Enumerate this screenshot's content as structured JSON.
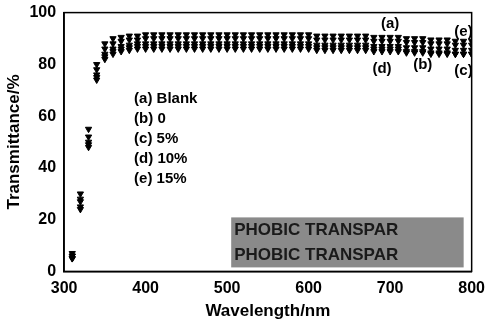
{
  "chart_data": {
    "type": "scatter",
    "x_label": "Wavelength/nm",
    "y_label": "Transmittance/%",
    "xlim": [
      300,
      800
    ],
    "xticks": [
      300,
      400,
      500,
      600,
      700,
      800
    ],
    "ylim": [
      0,
      100
    ],
    "yticks": [
      0,
      20,
      40,
      60,
      80,
      100
    ],
    "grid": false,
    "legend": "upper left",
    "marker": "triangle-down",
    "annotations": [
      "PHOBIC TRANSPAR",
      "PHOBIC TRANSPAR"
    ],
    "x": [
      310,
      320,
      330,
      340,
      350,
      360,
      370,
      380,
      390,
      400,
      410,
      420,
      430,
      440,
      450,
      460,
      470,
      480,
      490,
      500,
      510,
      520,
      530,
      540,
      550,
      560,
      570,
      580,
      590,
      600,
      610,
      620,
      630,
      640,
      650,
      660,
      670,
      680,
      690,
      700,
      710,
      720,
      730,
      740,
      750,
      760,
      770,
      780,
      790,
      800
    ],
    "series": [
      {
        "name": "(a) Blank",
        "color": "#000000",
        "values": [
          6,
          30,
          55,
          80,
          88,
          90,
          90.5,
          91,
          91,
          91.5,
          91.5,
          91.5,
          91.5,
          91.5,
          91.5,
          91.5,
          91.5,
          91.5,
          91.5,
          91.5,
          91.5,
          91.5,
          91.5,
          91.5,
          91.5,
          91.5,
          91.5,
          91.5,
          91.5,
          91.5,
          91,
          91,
          91,
          91,
          91,
          91,
          91,
          90.5,
          90.5,
          90.5,
          90.5,
          90,
          90,
          90,
          89.5,
          89.5,
          89.5,
          89,
          89,
          89
        ]
      },
      {
        "name": "(b) 0",
        "color": "#000000",
        "values": [
          7,
          27,
          50,
          76,
          84,
          86,
          87,
          87.5,
          88,
          88,
          88,
          88,
          88,
          88,
          88,
          88,
          88,
          88,
          88,
          88,
          88,
          88,
          88,
          88,
          88,
          88,
          88,
          88,
          88,
          88,
          87.5,
          87.5,
          87.5,
          87.5,
          87.5,
          87.5,
          87.5,
          87,
          87,
          87,
          87,
          86.5,
          86.5,
          86.5,
          86,
          86,
          86,
          85.5,
          85.5,
          85.5
        ]
      },
      {
        "name": "(c) 5%",
        "color": "#000000",
        "values": [
          6,
          25,
          49,
          75,
          83,
          85,
          86,
          86.5,
          87,
          87,
          87,
          87,
          87,
          87,
          87,
          87,
          87,
          87,
          87,
          87,
          87,
          87,
          87,
          87,
          87,
          87,
          87,
          87,
          87,
          87,
          86.5,
          86.5,
          86.5,
          86.5,
          86.5,
          86.5,
          86.5,
          86,
          86,
          86,
          86,
          85,
          85,
          85,
          84.5,
          84.5,
          84.5,
          84,
          84,
          84
        ]
      },
      {
        "name": "(d) 10%",
        "color": "#000000",
        "values": [
          5,
          24,
          48,
          74,
          82,
          84,
          85,
          85.5,
          86,
          86,
          86,
          86,
          86,
          86,
          86,
          86,
          86,
          86,
          86,
          86,
          86,
          86,
          86,
          86,
          86,
          86,
          86,
          86,
          86,
          86,
          85.5,
          85.5,
          85.5,
          85.5,
          85.5,
          85.5,
          85.5,
          85,
          85,
          85,
          85,
          84.5,
          84.5,
          84.5,
          84,
          84,
          84,
          84,
          84,
          84
        ]
      },
      {
        "name": "(e) 15%",
        "color": "#000000",
        "values": [
          5,
          28,
          52,
          78,
          86,
          88,
          89,
          89.5,
          89.5,
          90,
          90,
          90,
          90,
          90,
          90,
          90,
          90,
          90,
          90,
          90,
          90,
          90,
          90,
          90,
          90,
          90,
          90,
          90,
          90,
          90,
          89.5,
          89.5,
          89.5,
          89.5,
          89.5,
          89.5,
          89.5,
          89,
          89,
          89,
          89,
          88.5,
          88.5,
          88.5,
          88,
          88,
          88,
          87.5,
          87.5,
          87.5
        ]
      }
    ]
  }
}
